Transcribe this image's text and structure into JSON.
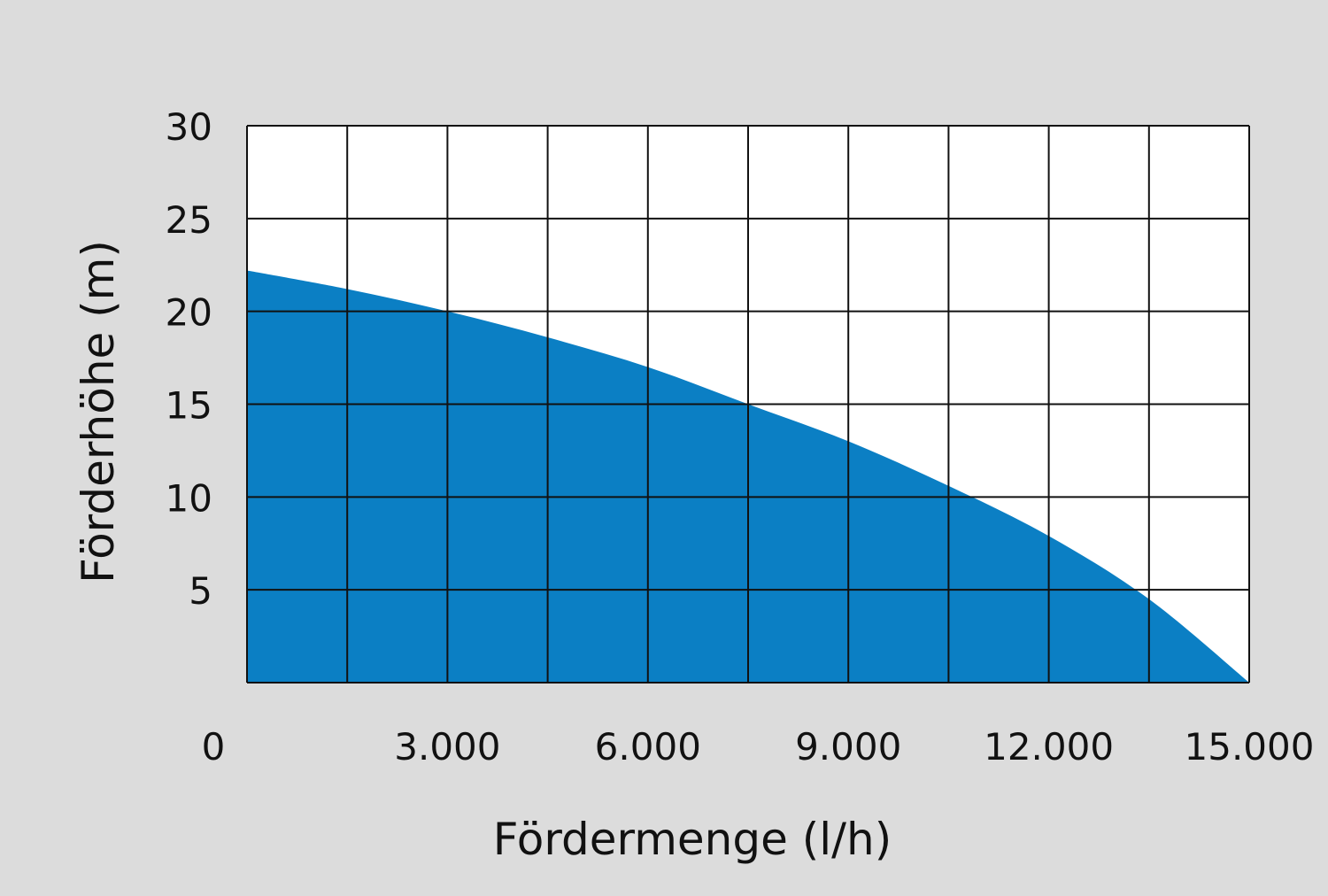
{
  "chart_data": {
    "type": "area",
    "title": "",
    "xlabel": "Fördermenge (l/h)",
    "ylabel": "Förderhöhe (m)",
    "xlim": [
      0,
      15000
    ],
    "ylim": [
      0,
      30
    ],
    "x_ticks": [
      0,
      3000,
      6000,
      9000,
      12000,
      15000
    ],
    "x_tick_labels": [
      "0",
      "3.000",
      "6.000",
      "9.000",
      "12.000",
      "15.000"
    ],
    "y_ticks": [
      5,
      10,
      15,
      20,
      25,
      30
    ],
    "y_tick_labels": [
      "5",
      "10",
      "15",
      "20",
      "25",
      "30"
    ],
    "grid": true,
    "x_grid_step": 1500,
    "y_grid_step": 5,
    "series": [
      {
        "x": [
          0,
          1500,
          3000,
          4500,
          6000,
          7500,
          9000,
          10500,
          12000,
          13500,
          15000
        ],
        "y": [
          22.2,
          21.2,
          20.0,
          18.6,
          17.0,
          15.0,
          13.0,
          10.6,
          7.9,
          4.5,
          0
        ],
        "color": "#0b7fc4"
      }
    ],
    "background": "#dcdcdc",
    "plot_background": "#ffffff"
  }
}
